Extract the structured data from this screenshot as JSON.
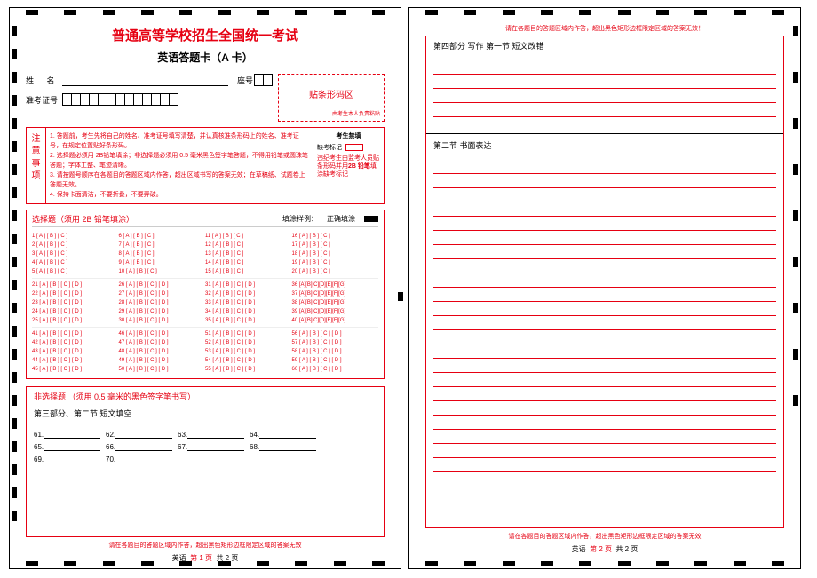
{
  "title": "普通高等学校招生全国统一考试",
  "subtitle": "英语答题卡（A 卡）",
  "labels": {
    "name": "姓 名",
    "seat": "座号",
    "exam_no": "准考证号"
  },
  "barcode": {
    "title": "贴条形码区",
    "note": "由考生本人负责粘贴"
  },
  "notice_head": "注意事项",
  "notices": [
    "1. 答题前，考生先将自己的姓名、准考证号填写清楚，并认真核准条形码上的姓名、准考证号，在规定位置贴好条形码。",
    "2. 选择题必须用 2B铅笔填涂；非选择题必须用 0.5 毫米黑色签字笔答题，不得用铅笔或圆珠笔答题；字体工整、笔迹清晰。",
    "3. 请按题号顺序在各题目的答题区域内作答，超出区域书写的答案无效；在草稿纸、试题卷上答题无效。",
    "4. 保持卡面清洁，不要折叠，不要弄破。"
  ],
  "filler": {
    "title": "考生禁填",
    "mark_label": "缺考标记",
    "text_pre": "违纪考生由监考人员贴条形码并用",
    "text_bold": "2B 铅笔",
    "text_post": "填涂缺考标记"
  },
  "mc": {
    "title": "选择题（须用 2B 铅笔填涂）",
    "sample_label": "填涂样例：",
    "correct_label": "正确填涂",
    "opts3": "[ A ] [ B ] [ C ]",
    "opts4": "[ A ] [ B ] [ C ] [ D ]",
    "opts7": "[A][B][C][D][E][F][G]",
    "sections": [
      {
        "start": 1,
        "end": 20,
        "cols": 4,
        "opts": "opts3"
      },
      {
        "start": 21,
        "end": 40,
        "cols": 4,
        "opts": "opts4",
        "last_col_opts": "opts7"
      },
      {
        "start": 41,
        "end": 60,
        "cols": 4,
        "opts": "opts4"
      }
    ]
  },
  "free": {
    "title": "非选择题 （须用 0.5 毫米的黑色签字笔书写）",
    "subtitle": "第三部分、第二节  短文填空",
    "blanks": [
      "61.",
      "62.",
      "63.",
      "64.",
      "65.",
      "66.",
      "67.",
      "68.",
      "69.",
      "70."
    ]
  },
  "warn": "请在各题目的答题区域内作答，超出黑色矩形边框限定区域的答案无效",
  "warn2": "请在各题目的答题区域内作答，超出黑色矩形边框限定区域的答案无效！",
  "footer": {
    "subj": "英语",
    "p1": "第 1 页",
    "p2": "第 2 页",
    "total": "共 2 页"
  },
  "page2": {
    "sect1": "第四部分  写作      第一节  短文改错",
    "sect1_lines": 5,
    "sect2": "第二节  书面表达",
    "sect2_lines": 22
  },
  "colors": {
    "red": "#e60012"
  }
}
